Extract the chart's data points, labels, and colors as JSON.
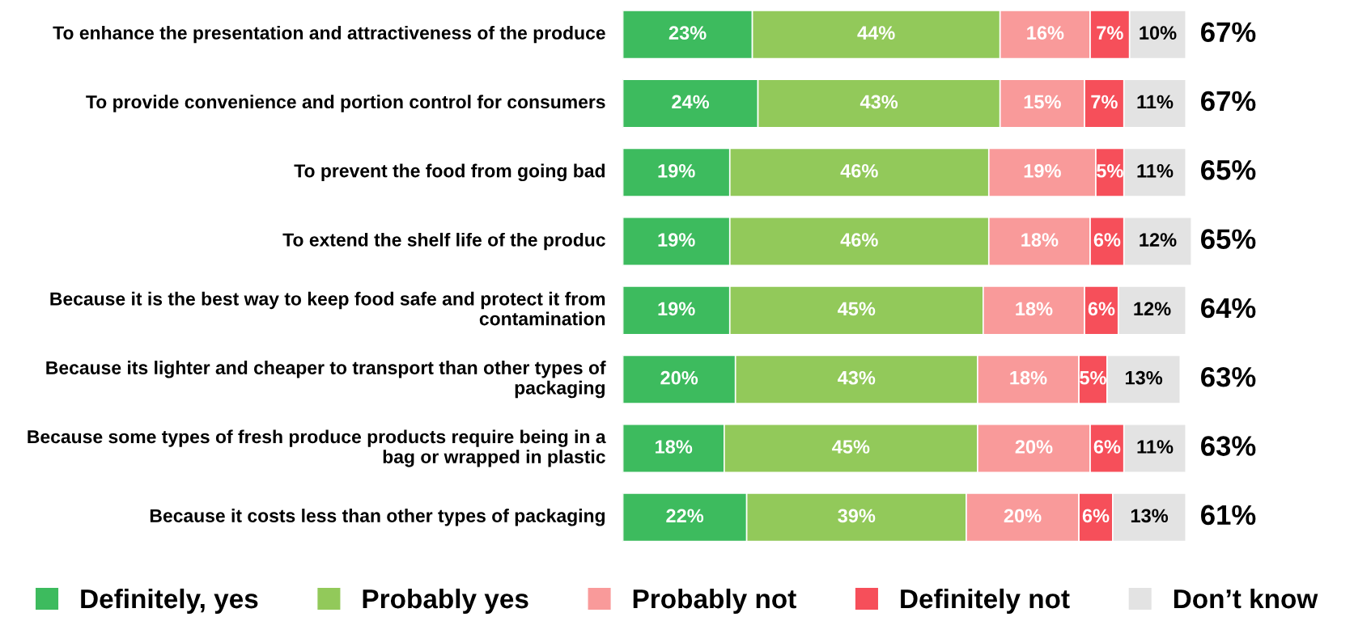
{
  "chart_data": {
    "type": "bar",
    "orientation": "horizontal",
    "stacked": true,
    "legend": "bottom",
    "categories": [
      "To enhance the presentation and attractiveness of the produce",
      "To provide convenience and portion control for consumers",
      "To prevent the food from going bad",
      "To extend the shelf life of the produc",
      "Because it is the best way to keep food safe and protect it from contamination",
      "Because its lighter and cheaper to transport than other types of packaging",
      "Because some types of fresh produce products require being in a bag or wrapped in plastic",
      "Because it costs less than other types of packaging"
    ],
    "series": [
      {
        "name": "Definitely, yes",
        "color": "#3dbb5e",
        "values": [
          23,
          24,
          19,
          19,
          19,
          20,
          18,
          22
        ],
        "value_labels": [
          "23%",
          "24%",
          "19%",
          "19%",
          "19%",
          "20%",
          "18%",
          "22%"
        ]
      },
      {
        "name": "Probably yes",
        "color": "#92c95a",
        "values": [
          44,
          43,
          46,
          46,
          45,
          43,
          45,
          39
        ],
        "value_labels": [
          "44%",
          "43%",
          "46%",
          "46%",
          "45%",
          "43%",
          "45%",
          "39%"
        ]
      },
      {
        "name": "Probably not",
        "color": "#f99a9a",
        "values": [
          16,
          15,
          19,
          18,
          18,
          18,
          20,
          20
        ],
        "value_labels": [
          "16%",
          "15%",
          "19%",
          "18%",
          "18%",
          "18%",
          "20%",
          "20%"
        ]
      },
      {
        "name": "Definitely not",
        "color": "#f64f5a",
        "values": [
          7,
          7,
          5,
          6,
          6,
          5,
          6,
          6
        ],
        "value_labels": [
          "7%",
          "7%",
          "5%",
          "6%",
          "6%",
          "5%",
          "6%",
          "6%"
        ]
      },
      {
        "name": "Don’t know",
        "color": "#e3e3e3",
        "values": [
          10,
          11,
          11,
          12,
          12,
          13,
          11,
          13
        ],
        "value_labels": [
          "10%",
          "11%",
          "11%",
          "12%",
          "12%",
          "13%",
          "11%",
          "13%"
        ]
      }
    ],
    "annotations": [
      "67%",
      "67%",
      "65%",
      "65%",
      "64%",
      "63%",
      "63%",
      "61%"
    ]
  }
}
